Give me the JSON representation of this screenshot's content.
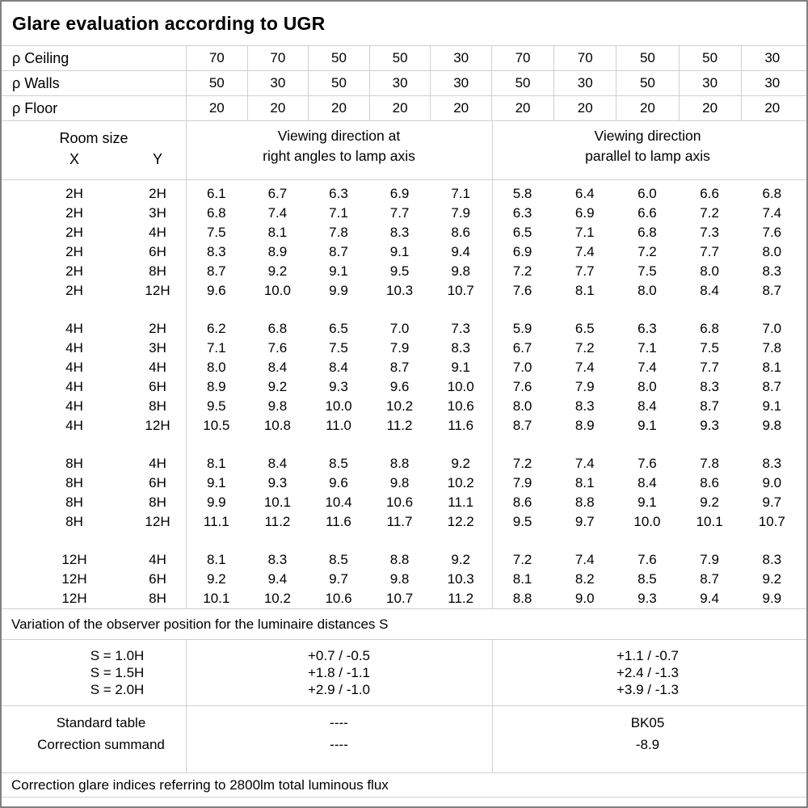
{
  "title": "Glare evaluation according to UGR",
  "rho_rows": [
    {
      "label": "ρ Ceiling",
      "values": [
        "70",
        "70",
        "50",
        "50",
        "30",
        "70",
        "70",
        "50",
        "50",
        "30"
      ]
    },
    {
      "label": "ρ Walls",
      "values": [
        "50",
        "30",
        "50",
        "30",
        "30",
        "50",
        "30",
        "50",
        "30",
        "30"
      ]
    },
    {
      "label": "ρ Floor",
      "values": [
        "20",
        "20",
        "20",
        "20",
        "20",
        "20",
        "20",
        "20",
        "20",
        "20"
      ]
    }
  ],
  "header": {
    "room_size": "Room size",
    "x_label": "X",
    "y_label": "Y",
    "crosswise_line1": "Viewing direction at",
    "crosswise_line2": "right angles to lamp axis",
    "parallel_line1": "Viewing direction",
    "parallel_line2": "parallel to lamp axis"
  },
  "ugr_blocks": [
    {
      "rows": [
        {
          "x": "2H",
          "y": "2H",
          "values": [
            "6.1",
            "6.7",
            "6.3",
            "6.9",
            "7.1",
            "5.8",
            "6.4",
            "6.0",
            "6.6",
            "6.8"
          ]
        },
        {
          "x": "2H",
          "y": "3H",
          "values": [
            "6.8",
            "7.4",
            "7.1",
            "7.7",
            "7.9",
            "6.3",
            "6.9",
            "6.6",
            "7.2",
            "7.4"
          ]
        },
        {
          "x": "2H",
          "y": "4H",
          "values": [
            "7.5",
            "8.1",
            "7.8",
            "8.3",
            "8.6",
            "6.5",
            "7.1",
            "6.8",
            "7.3",
            "7.6"
          ]
        },
        {
          "x": "2H",
          "y": "6H",
          "values": [
            "8.3",
            "8.9",
            "8.7",
            "9.1",
            "9.4",
            "6.9",
            "7.4",
            "7.2",
            "7.7",
            "8.0"
          ]
        },
        {
          "x": "2H",
          "y": "8H",
          "values": [
            "8.7",
            "9.2",
            "9.1",
            "9.5",
            "9.8",
            "7.2",
            "7.7",
            "7.5",
            "8.0",
            "8.3"
          ]
        },
        {
          "x": "2H",
          "y": "12H",
          "values": [
            "9.6",
            "10.0",
            "9.9",
            "10.3",
            "10.7",
            "7.6",
            "8.1",
            "8.0",
            "8.4",
            "8.7"
          ]
        }
      ]
    },
    {
      "rows": [
        {
          "x": "4H",
          "y": "2H",
          "values": [
            "6.2",
            "6.8",
            "6.5",
            "7.0",
            "7.3",
            "5.9",
            "6.5",
            "6.3",
            "6.8",
            "7.0"
          ]
        },
        {
          "x": "4H",
          "y": "3H",
          "values": [
            "7.1",
            "7.6",
            "7.5",
            "7.9",
            "8.3",
            "6.7",
            "7.2",
            "7.1",
            "7.5",
            "7.8"
          ]
        },
        {
          "x": "4H",
          "y": "4H",
          "values": [
            "8.0",
            "8.4",
            "8.4",
            "8.7",
            "9.1",
            "7.0",
            "7.4",
            "7.4",
            "7.7",
            "8.1"
          ]
        },
        {
          "x": "4H",
          "y": "6H",
          "values": [
            "8.9",
            "9.2",
            "9.3",
            "9.6",
            "10.0",
            "7.6",
            "7.9",
            "8.0",
            "8.3",
            "8.7"
          ]
        },
        {
          "x": "4H",
          "y": "8H",
          "values": [
            "9.5",
            "9.8",
            "10.0",
            "10.2",
            "10.6",
            "8.0",
            "8.3",
            "8.4",
            "8.7",
            "9.1"
          ]
        },
        {
          "x": "4H",
          "y": "12H",
          "values": [
            "10.5",
            "10.8",
            "11.0",
            "11.2",
            "11.6",
            "8.7",
            "8.9",
            "9.1",
            "9.3",
            "9.8"
          ]
        }
      ]
    },
    {
      "rows": [
        {
          "x": "8H",
          "y": "4H",
          "values": [
            "8.1",
            "8.4",
            "8.5",
            "8.8",
            "9.2",
            "7.2",
            "7.4",
            "7.6",
            "7.8",
            "8.3"
          ]
        },
        {
          "x": "8H",
          "y": "6H",
          "values": [
            "9.1",
            "9.3",
            "9.6",
            "9.8",
            "10.2",
            "7.9",
            "8.1",
            "8.4",
            "8.6",
            "9.0"
          ]
        },
        {
          "x": "8H",
          "y": "8H",
          "values": [
            "9.9",
            "10.1",
            "10.4",
            "10.6",
            "11.1",
            "8.6",
            "8.8",
            "9.1",
            "9.2",
            "9.7"
          ]
        },
        {
          "x": "8H",
          "y": "12H",
          "values": [
            "11.1",
            "11.2",
            "11.6",
            "11.7",
            "12.2",
            "9.5",
            "9.7",
            "10.0",
            "10.1",
            "10.7"
          ]
        }
      ]
    },
    {
      "rows": [
        {
          "x": "12H",
          "y": "4H",
          "values": [
            "8.1",
            "8.3",
            "8.5",
            "8.8",
            "9.2",
            "7.2",
            "7.4",
            "7.6",
            "7.9",
            "8.3"
          ]
        },
        {
          "x": "12H",
          "y": "6H",
          "values": [
            "9.2",
            "9.4",
            "9.7",
            "9.8",
            "10.3",
            "8.1",
            "8.2",
            "8.5",
            "8.7",
            "9.2"
          ]
        },
        {
          "x": "12H",
          "y": "8H",
          "values": [
            "10.1",
            "10.2",
            "10.6",
            "10.7",
            "11.2",
            "8.8",
            "9.0",
            "9.3",
            "9.4",
            "9.9"
          ]
        }
      ]
    }
  ],
  "variation_note": "Variation of the observer position for the luminaire distances S",
  "s_section": {
    "labels": [
      "S = 1.0H",
      "S = 1.5H",
      "S = 2.0H"
    ],
    "crosswise": [
      "+0.7 / -0.5",
      "+1.8 / -1.1",
      "+2.9 / -1.0"
    ],
    "parallel": [
      "+1.1 / -0.7",
      "+2.4 / -1.3",
      "+3.9 / -1.3"
    ]
  },
  "standard_section": {
    "labels": [
      "Standard table",
      "Correction summand"
    ],
    "crosswise": [
      "----",
      "----"
    ],
    "parallel": [
      "BK05",
      "-8.9"
    ]
  },
  "footer_note": "Correction glare indices referring to 2800lm total luminous flux",
  "colors": {
    "grid_line": "#d0d0d0",
    "outer_border": "#808080",
    "text": "#000000",
    "background": "#ffffff"
  }
}
